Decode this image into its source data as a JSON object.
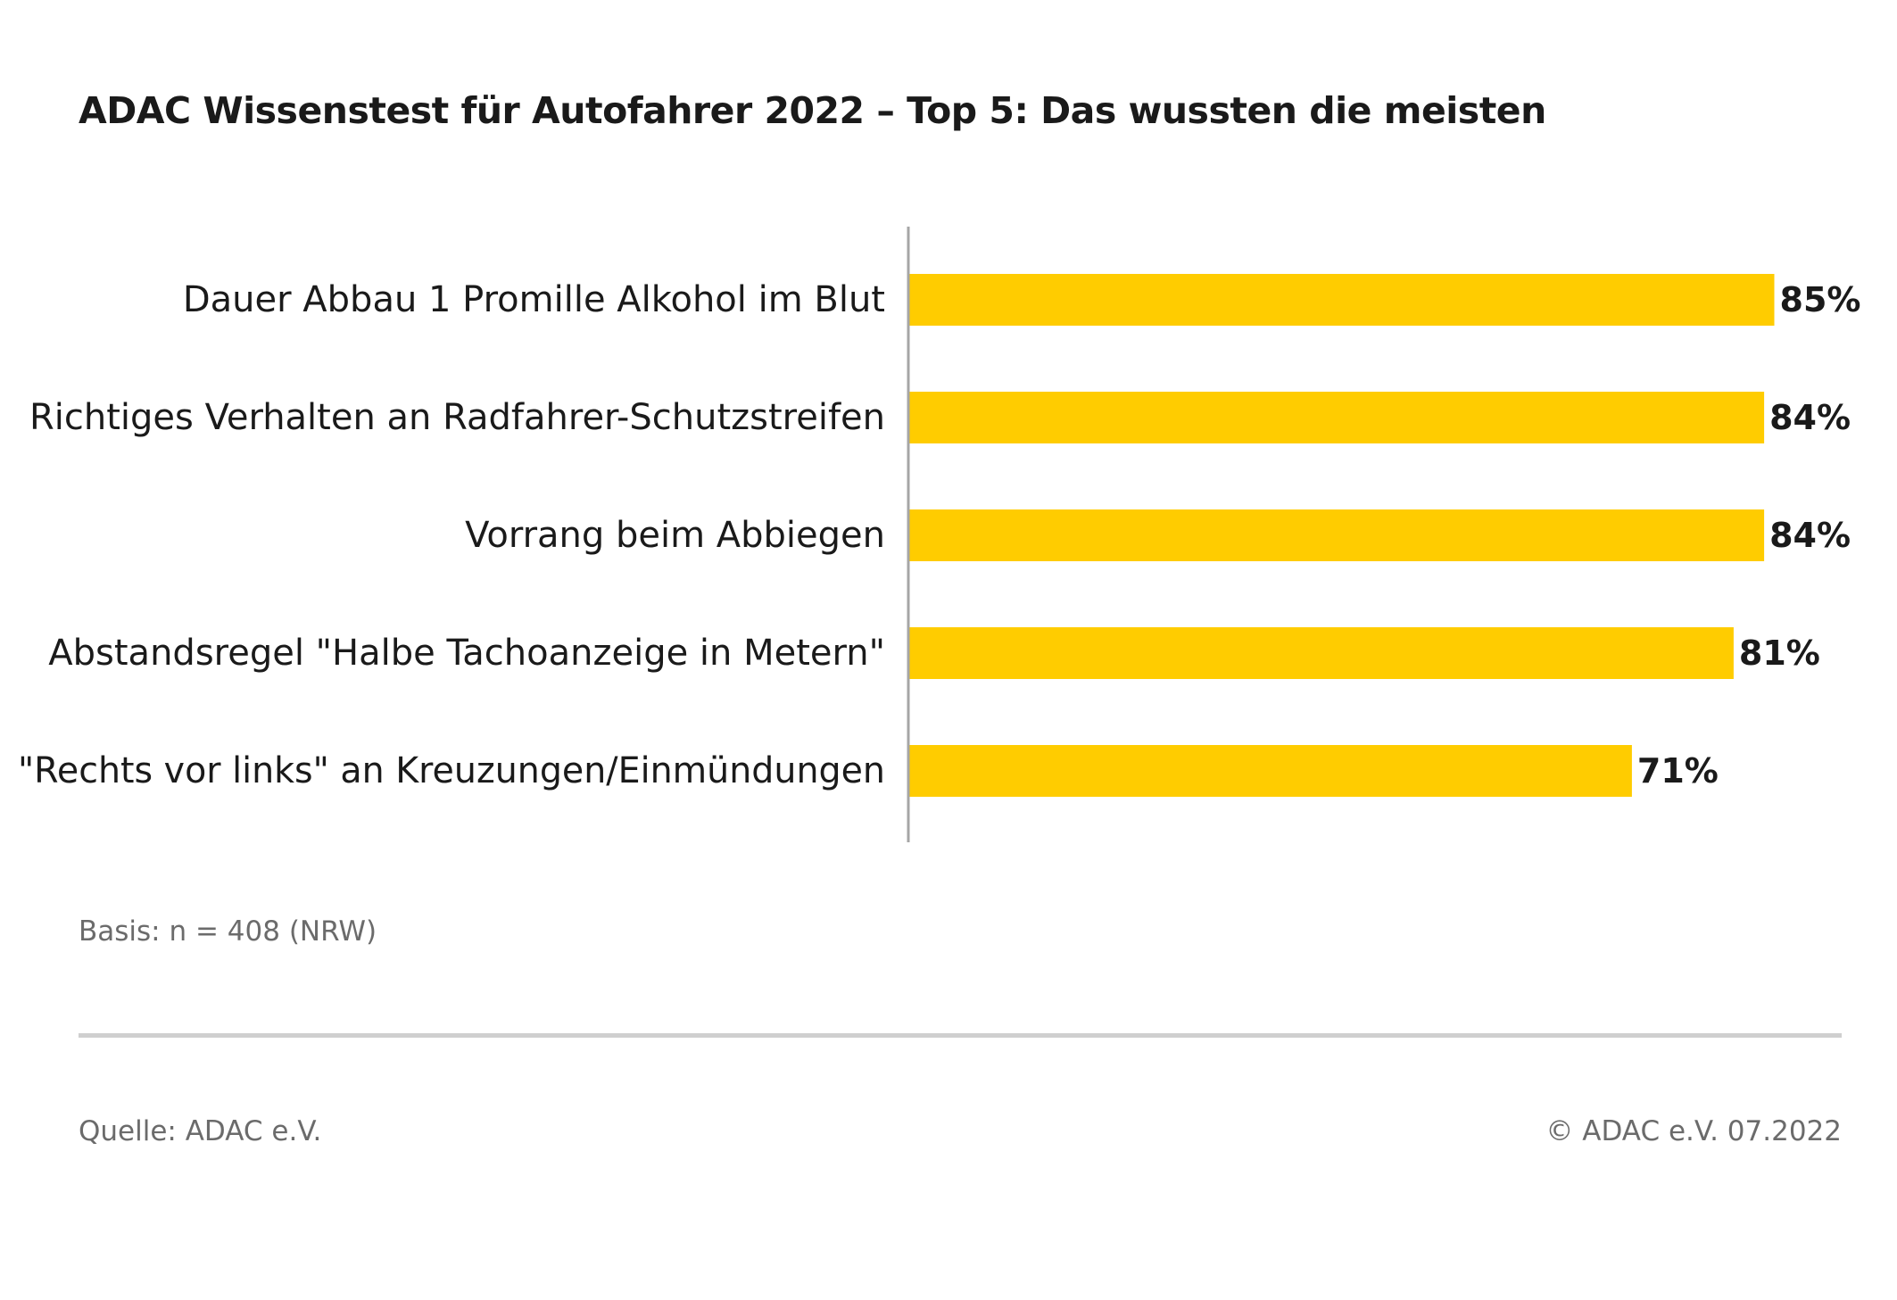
{
  "colors": {
    "bar": "#FFCC00",
    "axis": "#a6a6a6",
    "text": "#1a1a1a",
    "footnote": "#6b6b6b"
  },
  "chart_data": {
    "type": "bar",
    "orientation": "horizontal",
    "title": "ADAC Wissenstest für Autofahrer 2022 – Top 5: Das wussten die meisten",
    "categories": [
      "Dauer Abbau 1 Promille Alkohol im Blut",
      "Richtiges Verhalten an Radfahrer-Schutzstreifen",
      "Vorrang beim Abbiegen",
      "Abstandsregel \"Halbe Tachoanzeige in Metern\"",
      "\"Rechts vor links\" an Kreuzungen/Einmündungen"
    ],
    "values": [
      85,
      84,
      84,
      81,
      71
    ],
    "value_labels": [
      "85%",
      "84%",
      "84%",
      "81%",
      "71%"
    ],
    "unit": "%",
    "xlim": [
      0,
      100
    ],
    "grid": false,
    "legend": "none"
  },
  "footer": {
    "basis": "Basis: n = 408 (NRW)",
    "source": "Quelle: ADAC e.V.",
    "copyright": "© ADAC e.V. 07.2022"
  }
}
